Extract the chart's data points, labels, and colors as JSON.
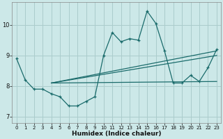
{
  "xlabel": "Humidex (Indice chaleur)",
  "bg_color": "#cce8e8",
  "grid_color": "#aacccc",
  "line_color": "#1a6b6b",
  "xlim": [
    -0.5,
    23.5
  ],
  "ylim": [
    6.8,
    10.75
  ],
  "xticks": [
    0,
    1,
    2,
    3,
    4,
    5,
    6,
    7,
    8,
    9,
    10,
    11,
    12,
    13,
    14,
    15,
    16,
    17,
    18,
    19,
    20,
    21,
    22,
    23
  ],
  "yticks": [
    7,
    8,
    9,
    10
  ],
  "series1_x": [
    0,
    1,
    2,
    3,
    4,
    5,
    6,
    7,
    8,
    9,
    10,
    11,
    12,
    13,
    14,
    15,
    16,
    17,
    18,
    19,
    20,
    21,
    22,
    23
  ],
  "series1_y": [
    8.9,
    8.2,
    7.9,
    7.9,
    7.75,
    7.65,
    7.35,
    7.35,
    7.5,
    7.65,
    9.0,
    9.75,
    9.45,
    9.55,
    9.5,
    10.45,
    10.05,
    9.15,
    8.1,
    8.1,
    8.35,
    8.15,
    8.6,
    9.2
  ],
  "line2_x": [
    4,
    23
  ],
  "line2_y": [
    8.1,
    8.15
  ],
  "line3_x": [
    4,
    23
  ],
  "line3_y": [
    8.1,
    9.0
  ],
  "line4_x": [
    4,
    23
  ],
  "line4_y": [
    8.1,
    9.15
  ]
}
